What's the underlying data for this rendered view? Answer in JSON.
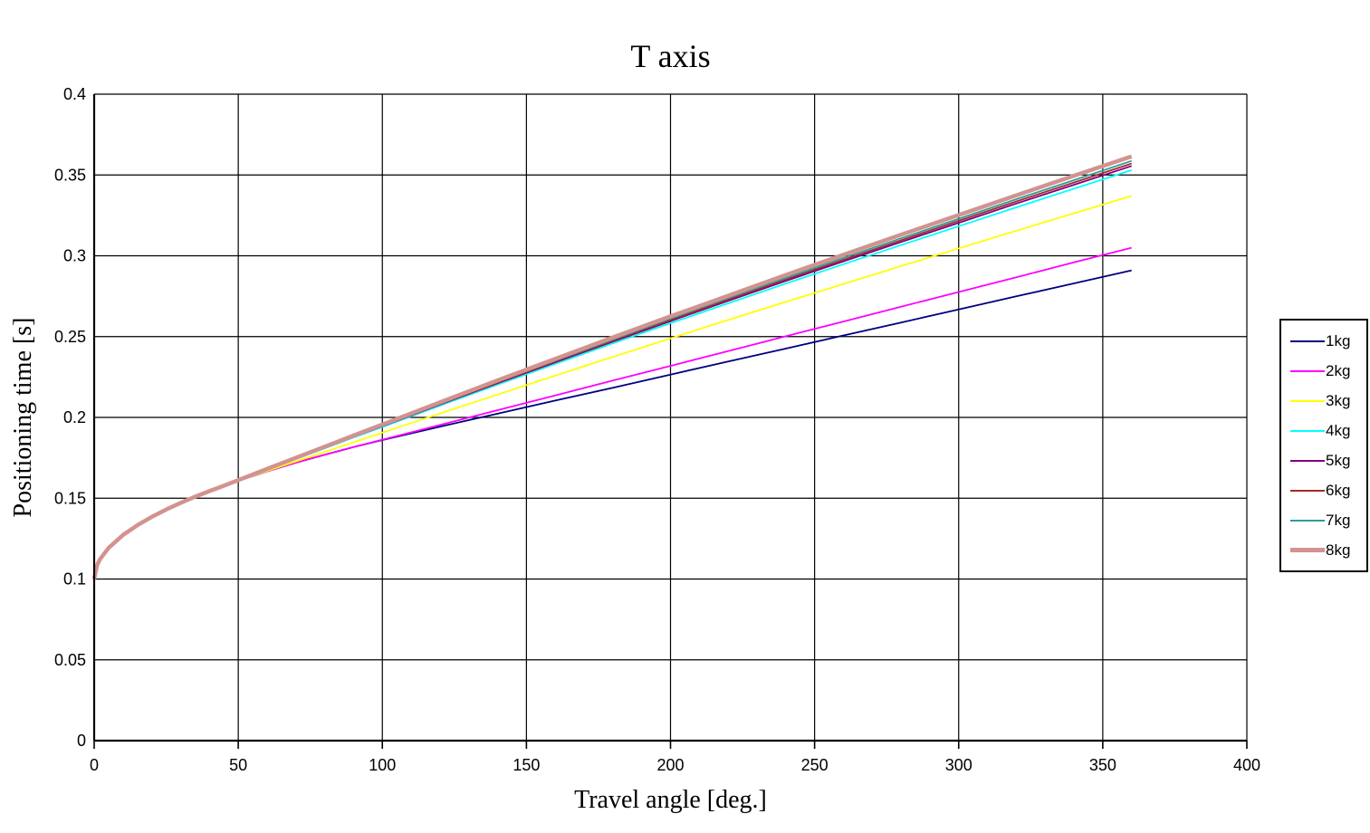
{
  "chart": {
    "title": "T axis",
    "xlabel": "Travel angle [deg.]",
    "ylabel": "Positioning time [s]"
  },
  "chart_data": {
    "type": "line",
    "title": "T axis",
    "xlabel": "Travel angle [deg.]",
    "ylabel": "Positioning time [s]",
    "xlim": [
      0,
      400
    ],
    "ylim": [
      0,
      0.4
    ],
    "x_ticks": [
      0,
      50,
      100,
      150,
      200,
      250,
      300,
      350,
      400
    ],
    "y_ticks": [
      0,
      0.05,
      0.1,
      0.15,
      0.2,
      0.25,
      0.3,
      0.35,
      0.4
    ],
    "x_tick_labels": [
      "0",
      "50",
      "100",
      "150",
      "200",
      "250",
      "300",
      "350",
      "400"
    ],
    "y_tick_labels": [
      "0",
      "0.05",
      "0.1",
      "0.15",
      "0.2",
      "0.25",
      "0.3",
      "0.35",
      "0.4"
    ],
    "grid": true,
    "grid_color": "#000000",
    "axis_color": "#000000",
    "background_color": "#ffffff",
    "legend_position": "right",
    "x": [
      0,
      1,
      2,
      5,
      10,
      15,
      20,
      25,
      30,
      35,
      40,
      45,
      50,
      60,
      70,
      80,
      90,
      100,
      120,
      140,
      160,
      180,
      200,
      220,
      240,
      260,
      280,
      300,
      320,
      340,
      360
    ],
    "series": [
      {
        "name": "1kg",
        "color": "#000080",
        "width": 1.8,
        "values": [
          0.1,
          0.1086,
          0.1122,
          0.1192,
          0.1272,
          0.1333,
          0.1385,
          0.143,
          0.1471,
          0.1509,
          0.1544,
          0.1577,
          0.1608,
          0.1666,
          0.172,
          0.1769,
          0.1816,
          0.186,
          0.1943,
          0.2023,
          0.2104,
          0.2184,
          0.2265,
          0.2346,
          0.2426,
          0.2507,
          0.2587,
          0.2668,
          0.2749,
          0.2829,
          0.291
        ]
      },
      {
        "name": "2kg",
        "color": "#FF00FF",
        "width": 1.8,
        "values": [
          0.1,
          0.1086,
          0.1122,
          0.1192,
          0.1272,
          0.1333,
          0.1385,
          0.143,
          0.1471,
          0.1509,
          0.1544,
          0.1577,
          0.1608,
          0.1666,
          0.172,
          0.1769,
          0.1817,
          0.1862,
          0.1953,
          0.2045,
          0.2136,
          0.2228,
          0.2319,
          0.241,
          0.2502,
          0.2593,
          0.2685,
          0.2776,
          0.2867,
          0.2959,
          0.305
        ]
      },
      {
        "name": "3kg",
        "color": "#FFFF00",
        "width": 1.8,
        "values": [
          0.1,
          0.1086,
          0.1122,
          0.1192,
          0.1272,
          0.1333,
          0.1385,
          0.143,
          0.1471,
          0.1509,
          0.1544,
          0.1577,
          0.1608,
          0.1668,
          0.1728,
          0.1786,
          0.1846,
          0.1906,
          0.2024,
          0.2141,
          0.2259,
          0.2374,
          0.2489,
          0.2603,
          0.2715,
          0.2826,
          0.2936,
          0.3046,
          0.3155,
          0.3263,
          0.3371
        ]
      },
      {
        "name": "4kg",
        "color": "#00FFFF",
        "width": 1.8,
        "values": [
          0.1,
          0.1086,
          0.1122,
          0.1192,
          0.1272,
          0.1333,
          0.1385,
          0.143,
          0.1471,
          0.1509,
          0.1544,
          0.1577,
          0.161,
          0.1677,
          0.1743,
          0.1809,
          0.1876,
          0.1941,
          0.2073,
          0.2203,
          0.2331,
          0.2458,
          0.2583,
          0.2706,
          0.2828,
          0.2948,
          0.3066,
          0.3183,
          0.33,
          0.3415,
          0.353
        ]
      },
      {
        "name": "5kg",
        "color": "#800080",
        "width": 1.8,
        "values": [
          0.1,
          0.1086,
          0.1122,
          0.1192,
          0.1272,
          0.1333,
          0.1385,
          0.143,
          0.1471,
          0.1509,
          0.1544,
          0.1577,
          0.1611,
          0.1679,
          0.1746,
          0.1812,
          0.188,
          0.1946,
          0.208,
          0.2211,
          0.2341,
          0.2469,
          0.2596,
          0.2721,
          0.2844,
          0.2966,
          0.3085,
          0.3204,
          0.3323,
          0.3439,
          0.3556
        ]
      },
      {
        "name": "6kg",
        "color": "#A52A2A",
        "width": 1.8,
        "values": [
          0.1,
          0.1086,
          0.1122,
          0.1192,
          0.1272,
          0.1333,
          0.1385,
          0.143,
          0.1471,
          0.1509,
          0.1544,
          0.1577,
          0.1611,
          0.1679,
          0.1746,
          0.1813,
          0.1882,
          0.1948,
          0.2083,
          0.2215,
          0.2346,
          0.2475,
          0.2603,
          0.2729,
          0.2853,
          0.2976,
          0.3096,
          0.3216,
          0.3336,
          0.3453,
          0.3571
        ]
      },
      {
        "name": "7kg",
        "color": "#2E9B9B",
        "width": 1.8,
        "values": [
          0.1,
          0.1086,
          0.1122,
          0.1192,
          0.1272,
          0.1333,
          0.1385,
          0.143,
          0.1471,
          0.1509,
          0.1544,
          0.1577,
          0.1611,
          0.168,
          0.1748,
          0.1815,
          0.1884,
          0.1951,
          0.2087,
          0.222,
          0.2352,
          0.2482,
          0.2611,
          0.2738,
          0.2863,
          0.2987,
          0.3108,
          0.3229,
          0.335,
          0.3468,
          0.3587
        ]
      },
      {
        "name": "8kg",
        "color": "#D2938F",
        "width": 4.5,
        "values": [
          0.1,
          0.1086,
          0.1122,
          0.1192,
          0.1272,
          0.1333,
          0.1385,
          0.143,
          0.1471,
          0.1509,
          0.1544,
          0.1577,
          0.1612,
          0.1681,
          0.175,
          0.1819,
          0.1888,
          0.1956,
          0.2093,
          0.2229,
          0.2362,
          0.2495,
          0.2625,
          0.2753,
          0.2881,
          0.3006,
          0.313,
          0.3252,
          0.3374,
          0.3495,
          0.3615
        ]
      }
    ]
  }
}
